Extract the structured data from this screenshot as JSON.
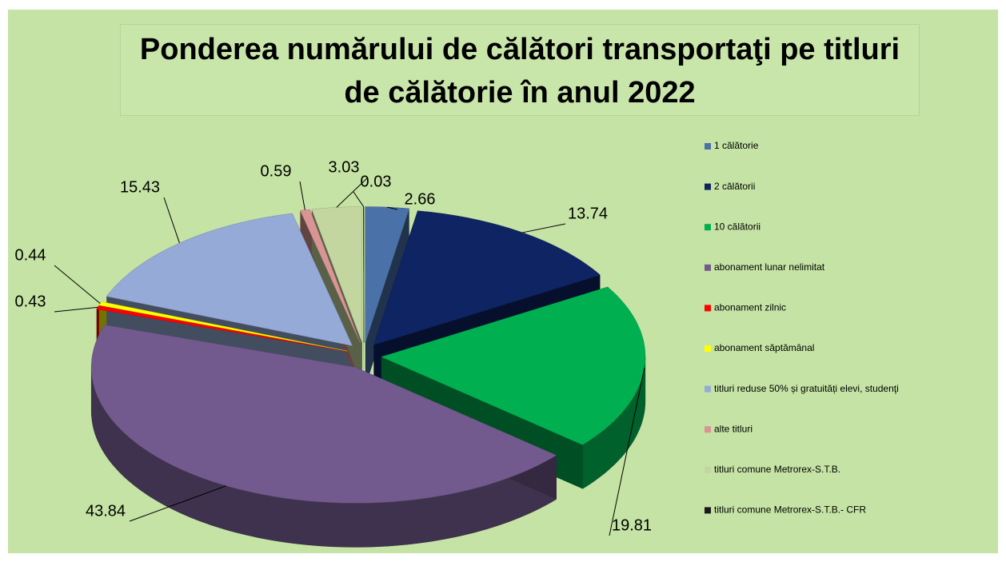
{
  "chart_data": {
    "type": "pie3d",
    "title": "Ponderea numărului de călători transportaţi pe titluri de călătorie în anul 2022",
    "categories": [
      "1 călătorie",
      "2 călătorii",
      "10 călătorii",
      "abonament lunar nelimitat",
      "abonament zilnic",
      "abonament săptămânal",
      "titluri reduse 50% și gratuități elevi, studenţi",
      "alte titluri",
      "titluri comune Metrorex-S.T.B.",
      "titluri comune Metrorex-S.T.B.- CFR"
    ],
    "values": [
      2.66,
      13.74,
      19.81,
      43.84,
      0.43,
      0.44,
      15.43,
      0.59,
      3.03,
      0.03
    ],
    "colors": [
      "#4a72a8",
      "#0e2463",
      "#00b050",
      "#735a8e",
      "#ff0000",
      "#ffff00",
      "#95aad6",
      "#d99594",
      "#c3d69f",
      "#1a1a1a"
    ],
    "legend": "right"
  }
}
